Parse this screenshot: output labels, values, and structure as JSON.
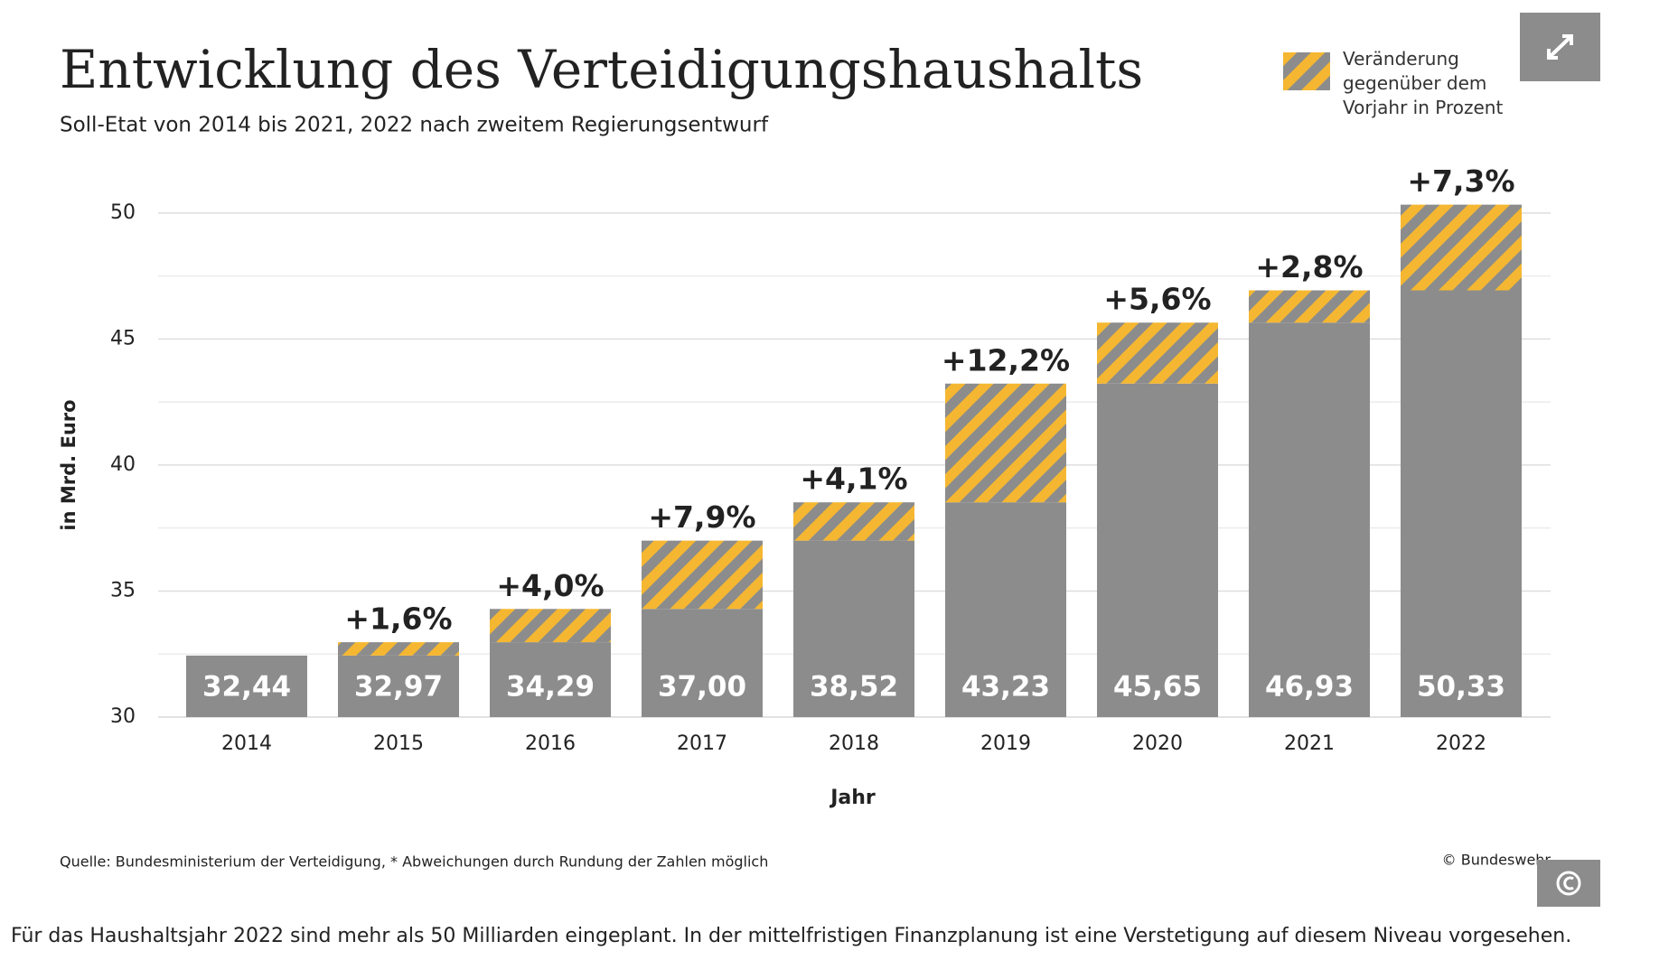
{
  "chart_data": {
    "type": "bar",
    "title": "Entwicklung des Verteidigungshaushalts",
    "subtitle": "Soll-Etat von 2014 bis 2021, 2022 nach zweitem Regierungsentwurf",
    "y_label": "in Mrd. Euro",
    "x_label": "Jahr",
    "categories": [
      "2014",
      "2015",
      "2016",
      "2017",
      "2018",
      "2019",
      "2020",
      "2021",
      "2022"
    ],
    "values": [
      32.44,
      32.97,
      34.29,
      37.0,
      38.52,
      43.23,
      45.65,
      46.93,
      50.33
    ],
    "value_labels": [
      "32,44",
      "32,97",
      "34,29",
      "37,00",
      "38,52",
      "43,23",
      "45,65",
      "46,93",
      "50,33"
    ],
    "color": "#8c8c8c",
    "changes": {
      "name": "Veränderung gegenüber dem Vorjahr in Prozent",
      "color": "#f5b731",
      "values": [
        null,
        1.6,
        4.0,
        7.9,
        4.1,
        12.2,
        5.6,
        2.8,
        7.3
      ],
      "value_labels": [
        null,
        "+1,6%",
        "+4,0%",
        "+7,9%",
        "+4,1%",
        "+12,2%",
        "+5,6%",
        "+2,8%",
        "+7,3%"
      ]
    },
    "ylim": [
      30,
      52
    ],
    "yticks": [
      30,
      35,
      40,
      45,
      50
    ],
    "yticks_minor": [
      32.5,
      37.5,
      42.5,
      47.5
    ],
    "grid": true,
    "legend": "top-right",
    "source": "Quelle: Bundesministerium der Verteidigung, * Abweichungen durch Rundung der Zahlen möglich",
    "copyright": "© Bundeswehr"
  },
  "caption": "Für das Haushaltsjahr 2022 sind mehr als 50 Milliarden eingeplant. In der mittelfristigen Finanzplanung ist eine Verstetigung auf diesem Niveau vorgesehen."
}
